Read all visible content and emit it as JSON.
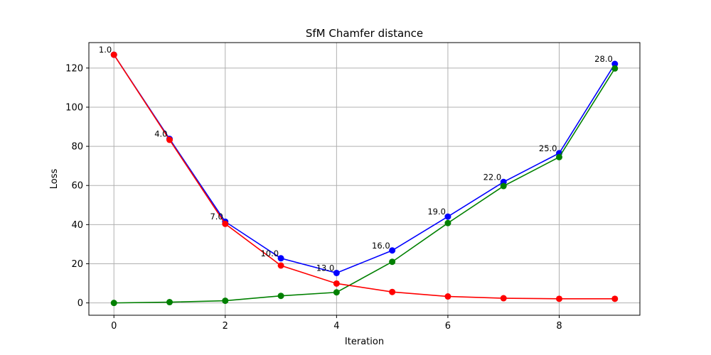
{
  "chart_data": {
    "type": "line",
    "title": "SfM Chamfer distance",
    "xlabel": "Iteration",
    "ylabel": "Loss",
    "xlim": [
      -0.45,
      9.45
    ],
    "ylim": [
      -6.3,
      133.0
    ],
    "xticks": [
      0,
      2,
      4,
      6,
      8
    ],
    "yticks": [
      0,
      20,
      40,
      60,
      80,
      100,
      120
    ],
    "grid": true,
    "x": [
      0,
      1,
      2,
      3,
      4,
      5,
      6,
      7,
      8,
      9
    ],
    "series": [
      {
        "color": "#0000ff",
        "values": [
          126.8,
          83.8,
          41.5,
          22.8,
          15.3,
          26.8,
          44.1,
          61.8,
          76.5,
          122.1
        ]
      },
      {
        "color": "#008000",
        "values": [
          0.0,
          0.4,
          1.1,
          3.6,
          5.4,
          21.0,
          40.8,
          59.7,
          74.5,
          119.8
        ]
      },
      {
        "color": "#ff0000",
        "values": [
          126.8,
          83.3,
          40.4,
          19.1,
          9.9,
          5.6,
          3.3,
          2.4,
          2.1,
          2.1
        ]
      }
    ],
    "annotations": [
      {
        "x": 0,
        "y": 126.8,
        "text": "1.0"
      },
      {
        "x": 1,
        "y": 83.8,
        "text": "4.0"
      },
      {
        "x": 2,
        "y": 41.5,
        "text": "7.0"
      },
      {
        "x": 3,
        "y": 22.8,
        "text": "10.0"
      },
      {
        "x": 4,
        "y": 15.3,
        "text": "13.0"
      },
      {
        "x": 5,
        "y": 26.8,
        "text": "16.0"
      },
      {
        "x": 6,
        "y": 44.1,
        "text": "19.0"
      },
      {
        "x": 7,
        "y": 61.8,
        "text": "22.0"
      },
      {
        "x": 8,
        "y": 76.5,
        "text": "25.0"
      },
      {
        "x": 9,
        "y": 122.1,
        "text": "28.0"
      }
    ]
  }
}
